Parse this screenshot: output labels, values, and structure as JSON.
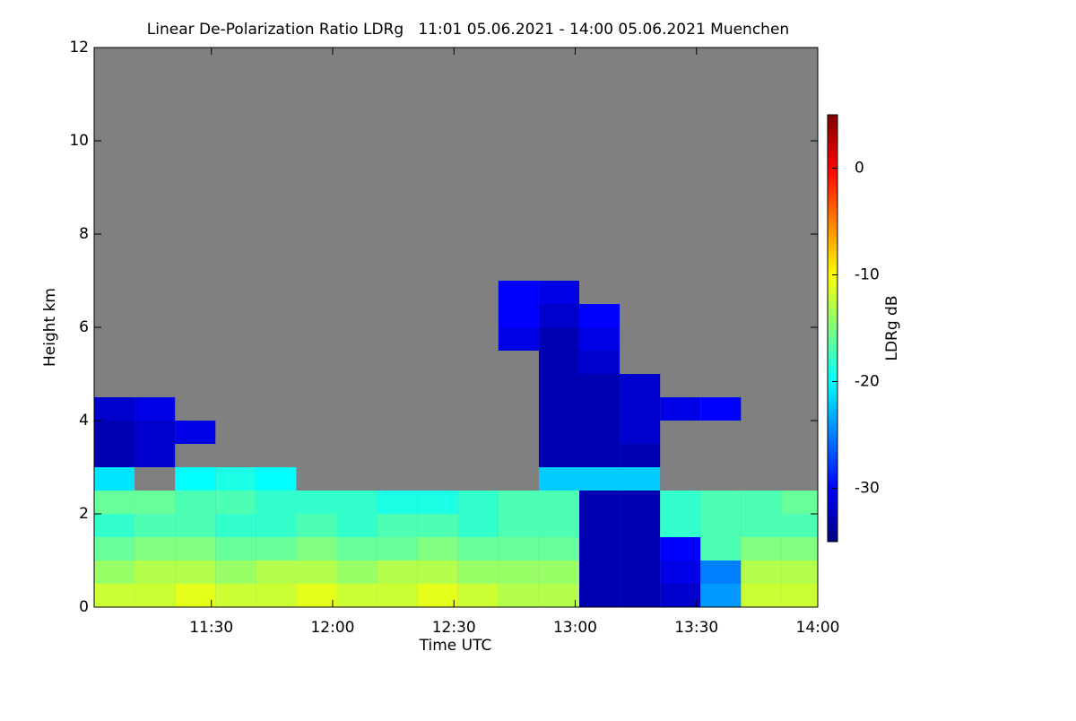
{
  "chart_data": {
    "type": "heatmap",
    "title": "Linear De-Polarization Ratio LDRg   11:01 05.06.2021 - 14:00 05.06.2021 Muenchen",
    "xlabel": "Time UTC",
    "ylabel": "Height km",
    "colorbar_label": "LDRg dB",
    "xlim": [
      661,
      840
    ],
    "xticks": [
      {
        "value": 690,
        "label": "11:30"
      },
      {
        "value": 720,
        "label": "12:00"
      },
      {
        "value": 750,
        "label": "12:30"
      },
      {
        "value": 780,
        "label": "13:00"
      },
      {
        "value": 810,
        "label": "13:30"
      },
      {
        "value": 840,
        "label": "14:00"
      }
    ],
    "ylim": [
      0,
      12
    ],
    "yticks": [
      0,
      2,
      4,
      6,
      8,
      10,
      12
    ],
    "clim": [
      -35,
      5
    ],
    "cticks": [
      0,
      -10,
      -20,
      -30
    ],
    "colormap": "jet",
    "background": "#808080",
    "x": [
      666,
      676,
      686,
      696,
      706,
      716,
      726,
      736,
      746,
      756,
      766,
      776,
      786,
      796,
      806,
      816,
      826,
      836
    ],
    "y": [
      0.25,
      0.75,
      1.25,
      1.75,
      2.25,
      2.75,
      3.25,
      3.75,
      4.25,
      4.75,
      5.25,
      5.75,
      6.25,
      6.75
    ],
    "z": [
      [
        -12,
        -12,
        -11,
        -12,
        -12,
        -11,
        -12,
        -12,
        -11,
        -12,
        -13,
        -13,
        -33,
        -33,
        -32,
        -24,
        -12,
        -12
      ],
      [
        -14,
        -13,
        -13,
        -14,
        -13,
        -13,
        -14,
        -13,
        -13,
        -14,
        -14,
        -14,
        -33,
        -33,
        -31,
        -25,
        -13,
        -13
      ],
      [
        -16,
        -15,
        -15,
        -16,
        -16,
        -15,
        -16,
        -16,
        -15,
        -16,
        -16,
        -16,
        -33,
        -33,
        -30,
        -17,
        -15,
        -15
      ],
      [
        -18,
        -17,
        -17,
        -18,
        -18,
        -17,
        -18,
        -17,
        -17,
        -18,
        -17,
        -17,
        -33,
        -33,
        -18,
        -17,
        -17,
        -17
      ],
      [
        -16,
        -16,
        -17,
        -17,
        -18,
        -18,
        -18,
        -19,
        -19,
        -18,
        -17,
        -17,
        -33,
        -33,
        -18,
        -17,
        -17,
        -16
      ],
      [
        -21,
        null,
        -20,
        -19,
        -20,
        null,
        null,
        null,
        null,
        null,
        null,
        -22,
        -22,
        -22,
        null,
        null,
        null,
        null
      ],
      [
        -33,
        -32,
        null,
        null,
        null,
        null,
        null,
        null,
        null,
        null,
        null,
        -33,
        -33,
        -33,
        null,
        null,
        null,
        null
      ],
      [
        -33,
        -32,
        -31,
        null,
        null,
        null,
        null,
        null,
        null,
        null,
        null,
        -33,
        -33,
        -32,
        null,
        null,
        null,
        null
      ],
      [
        -32,
        -31,
        null,
        null,
        null,
        null,
        null,
        null,
        null,
        null,
        null,
        -33,
        -33,
        -32,
        -31,
        -30,
        null,
        null
      ],
      [
        null,
        null,
        null,
        null,
        null,
        null,
        null,
        null,
        null,
        null,
        null,
        -33,
        -33,
        -32,
        null,
        null,
        null,
        null
      ],
      [
        null,
        null,
        null,
        null,
        null,
        null,
        null,
        null,
        null,
        null,
        null,
        -33,
        -32,
        null,
        null,
        null,
        null,
        null
      ],
      [
        null,
        null,
        null,
        null,
        null,
        null,
        null,
        null,
        null,
        null,
        -31,
        -33,
        -31,
        null,
        null,
        null,
        null,
        null
      ],
      [
        null,
        null,
        null,
        null,
        null,
        null,
        null,
        null,
        null,
        null,
        -30,
        -32,
        -30,
        null,
        null,
        null,
        null,
        null
      ],
      [
        null,
        null,
        null,
        null,
        null,
        null,
        null,
        null,
        null,
        null,
        -30,
        -31,
        null,
        null,
        null,
        null,
        null,
        null
      ]
    ]
  }
}
